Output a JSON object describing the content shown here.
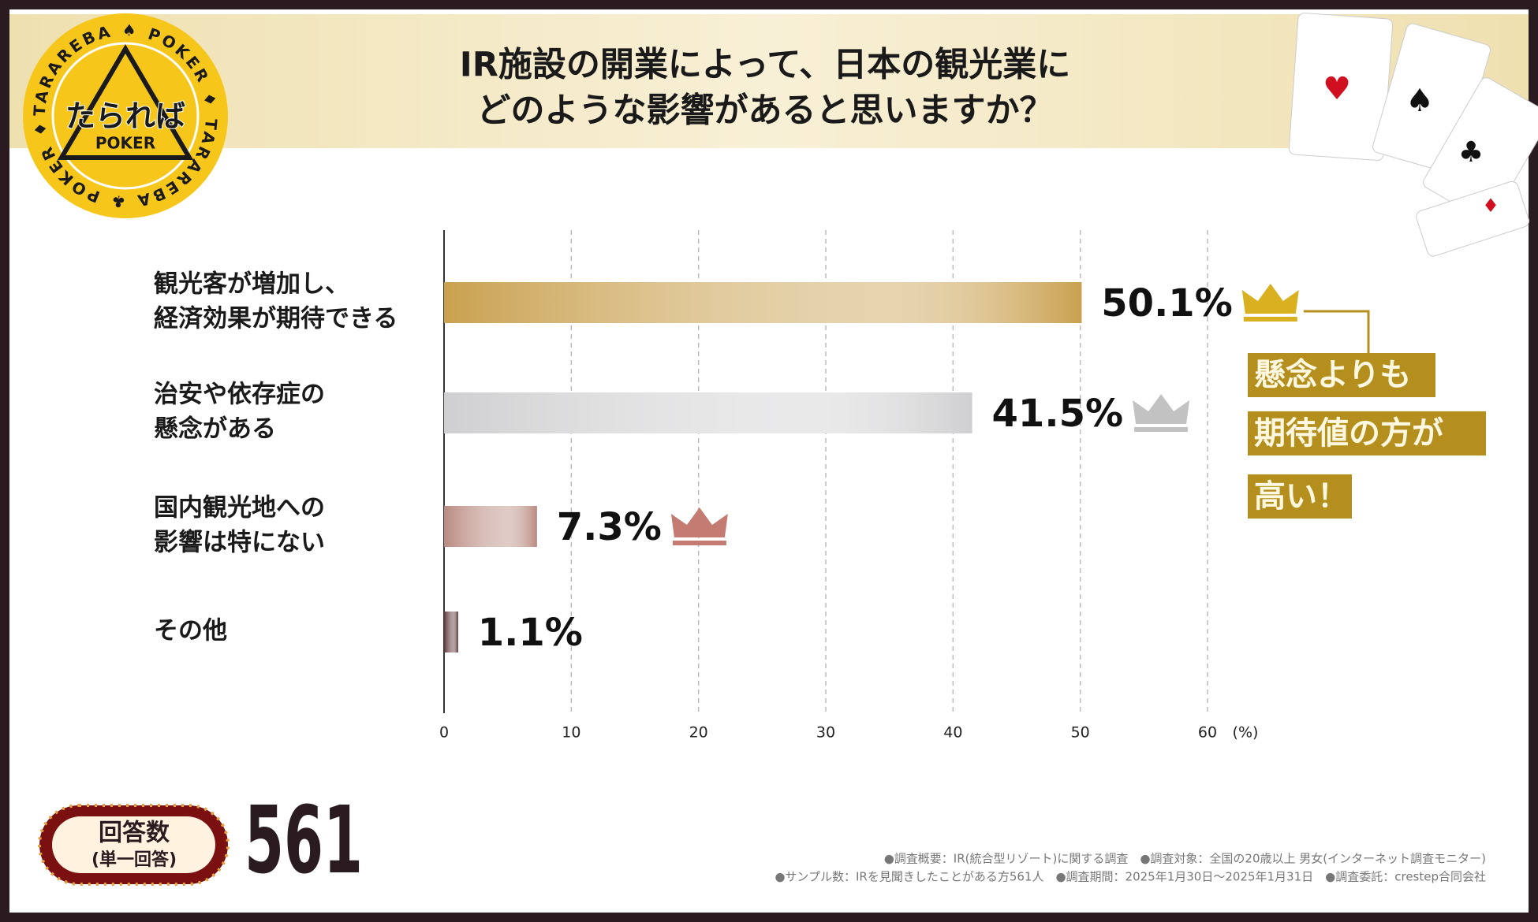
{
  "logo": {
    "ring": "TARAREBA ♠ POKER ♦ TARAREBA ♣ POKER ♦",
    "name": "たられば",
    "sub": "POKER"
  },
  "chart_data": {
    "type": "barh",
    "title": [
      "IR施設の開業によって、日本の観光業に",
      "どのような影響があると思いますか？"
    ],
    "categories": [
      [
        "観光客が増加し、",
        "経済効果が期待できる"
      ],
      [
        "治安や依存症の",
        "懸念がある"
      ],
      [
        "国内観光地への",
        "影響は特にない"
      ],
      [
        "その他"
      ]
    ],
    "values": [
      50.1,
      41.5,
      7.3,
      1.1
    ],
    "value_labels": [
      "50.1%",
      "41.5%",
      "7.3%",
      "1.1%"
    ],
    "colors": [
      "#c9a04e",
      "#cfcfd1",
      "#b98a80",
      "#5a3236"
    ],
    "crowns": [
      "#d8b020",
      "#c2c2c2",
      "#c47c72"
    ],
    "xlim": [
      0,
      60
    ],
    "xticks": [
      0,
      10,
      20,
      30,
      40,
      50,
      60
    ],
    "xunit": "(%)",
    "grid": true,
    "annotation": [
      "懸念よりも",
      "期待値の方が",
      "高い！"
    ]
  },
  "responses": {
    "label": "回答数",
    "sublabel": "(単一回答)",
    "count": "561"
  },
  "notes": [
    "●調査概要：IR(統合型リゾート)に関する調査　●調査対象：全国の20歳以上 男女(インターネット調査モニター)",
    "●サンプル数：IRを見聞きしたことがある方561人　●調査期間：2025年1月30日～2025年1月31日　●調査委託：crestep合同会社"
  ]
}
